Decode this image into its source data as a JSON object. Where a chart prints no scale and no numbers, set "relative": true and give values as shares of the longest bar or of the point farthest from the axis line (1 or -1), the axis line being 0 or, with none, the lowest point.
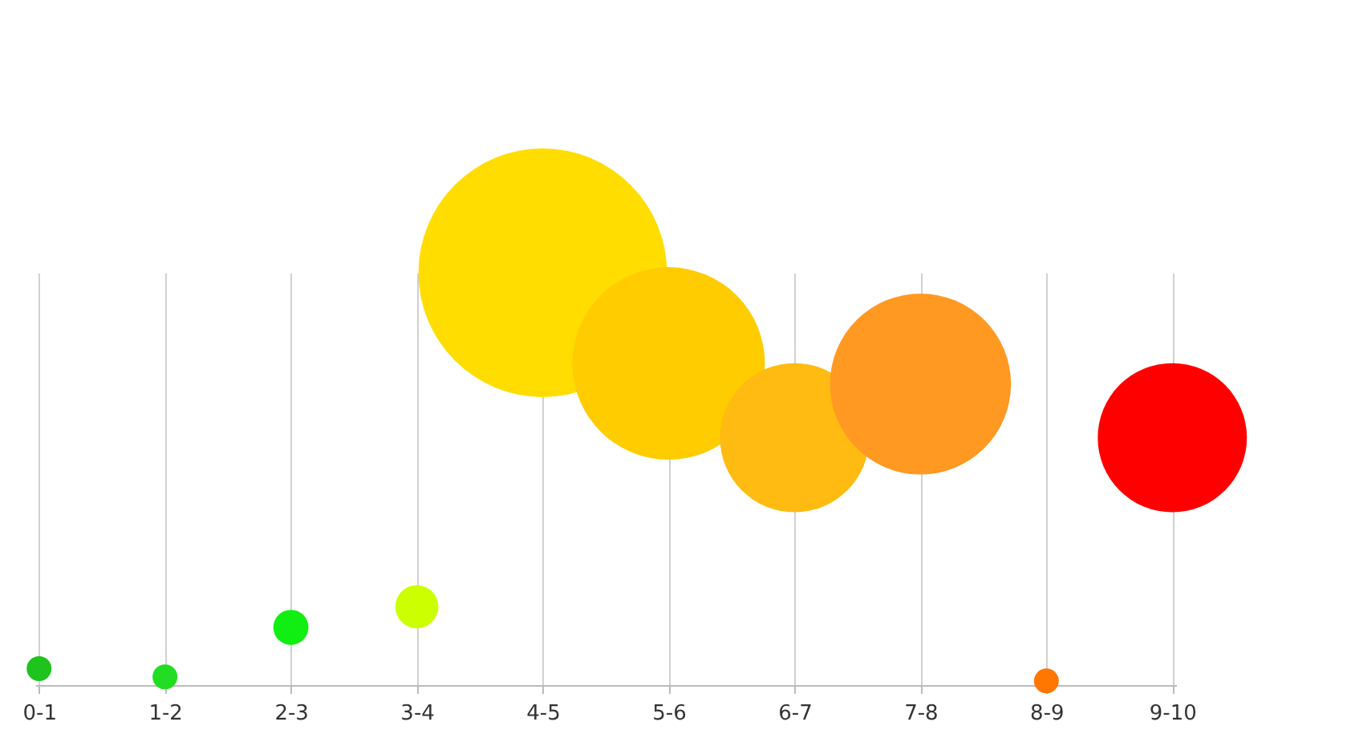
{
  "chart_data": {
    "type": "bubble",
    "relative": true,
    "grid": "x",
    "categories": [
      "0-1",
      "1-2",
      "2-3",
      "3-4",
      "4-5",
      "5-6",
      "6-7",
      "7-8",
      "8-9",
      "9-10"
    ],
    "series": [
      {
        "values": [
          0.04,
          0.02,
          0.14,
          0.19,
          1,
          0.78,
          0.6,
          0.73,
          0.01,
          0.6
        ],
        "sizes": [
          0.01,
          0.01,
          0.02,
          0.03,
          1,
          0.6,
          0.36,
          0.53,
          0.01,
          0.36
        ],
        "colors": [
          "#1ec31e",
          "#22dd22",
          "#11ee11",
          "#ccff00",
          "#ffdd00",
          "#ffcc00",
          "#ffbb11",
          "#ff9922",
          "#ff7700",
          "#ff0000"
        ]
      }
    ]
  }
}
